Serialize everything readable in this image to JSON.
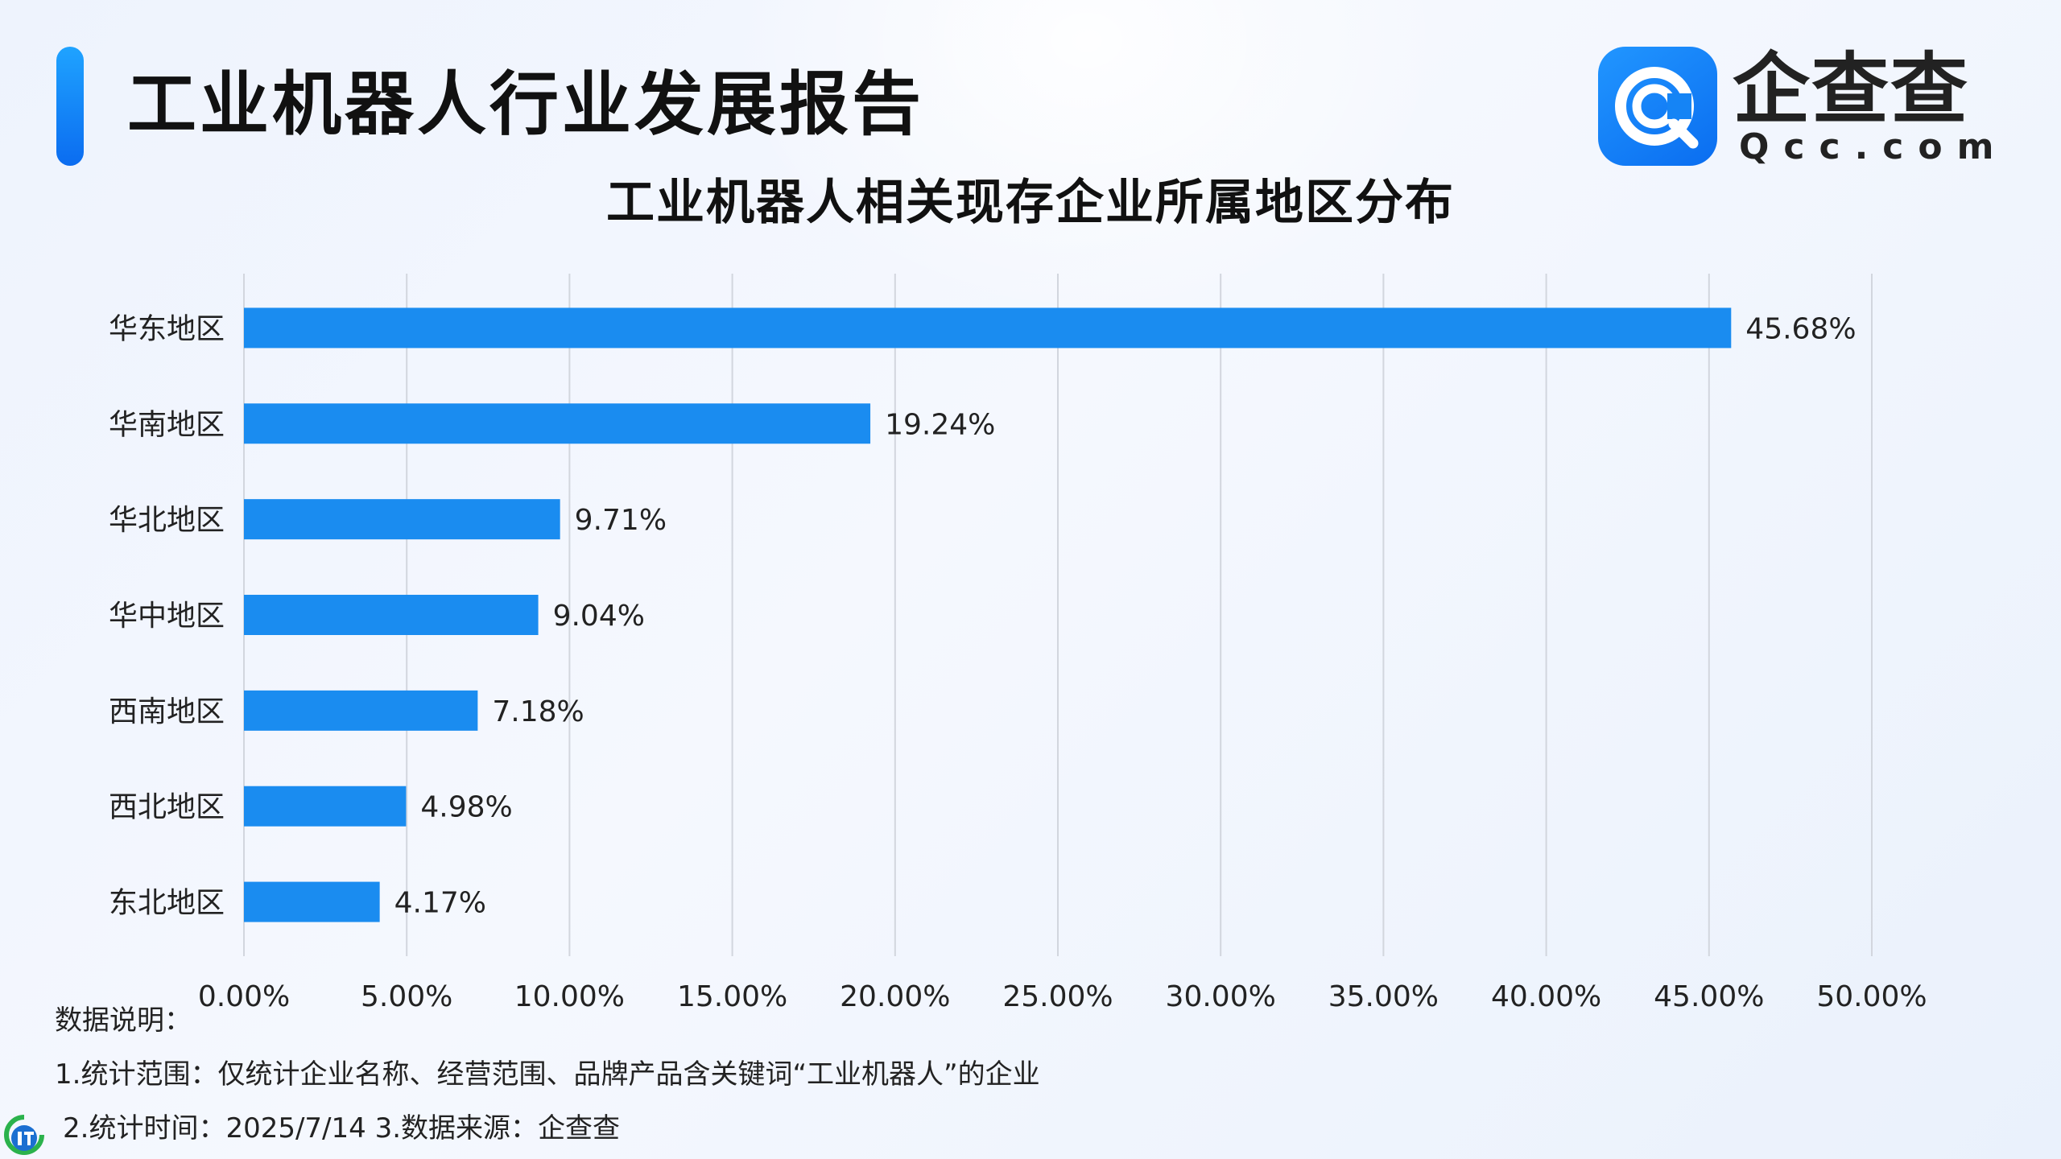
{
  "header": {
    "report_title": "工业机器人行业发展报告",
    "brand_name": "企查查",
    "brand_url": "Qcc.com",
    "logo_icon": "qcc-logo-icon",
    "accent_color": "#1a8cf0"
  },
  "chart_data": {
    "type": "bar",
    "orientation": "horizontal",
    "title": "工业机器人相关现存企业所属地区分布",
    "xlabel": "",
    "ylabel": "",
    "categories": [
      "华东地区",
      "华南地区",
      "华北地区",
      "华中地区",
      "西南地区",
      "西北地区",
      "东北地区"
    ],
    "values": [
      45.68,
      19.24,
      9.71,
      9.04,
      7.18,
      4.98,
      4.17
    ],
    "value_labels": [
      "45.68%",
      "19.24%",
      "9.71%",
      "9.04%",
      "7.18%",
      "4.98%",
      "4.17%"
    ],
    "xlim": [
      0,
      50
    ],
    "xticks": [
      "0.00%",
      "5.00%",
      "10.00%",
      "15.00%",
      "20.00%",
      "25.00%",
      "30.00%",
      "35.00%",
      "40.00%",
      "45.00%",
      "50.00%"
    ],
    "grid": true,
    "bar_color": "#1a8cf0"
  },
  "notes": {
    "heading": "数据说明：",
    "line1": "1.统计范围：仅统计企业名称、经营范围、品牌产品含关键词“工业机器人”的企业",
    "line2": "2.统计时间：2025/7/14  3.数据来源：企查查"
  },
  "watermark": {
    "icon": "ithome-logo-icon"
  }
}
